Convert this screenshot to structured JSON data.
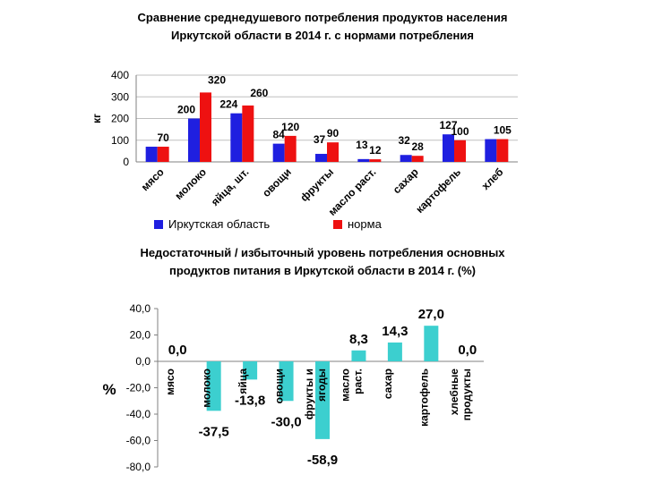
{
  "colors": {
    "irkutsk": "#1f1fe0",
    "norm": "#ee1111",
    "bars2": "#3ccfcf",
    "grid": "#bfbfbf",
    "axis": "#808080"
  },
  "chart_data": [
    {
      "type": "bar",
      "title_line1": "Сравнение среднедушевого потребления продуктов населения",
      "title_line2": "Иркутской области в 2014 г. с нормами потребления",
      "ylabel": "кг",
      "xlabel": "",
      "ylim": [
        0,
        400
      ],
      "yticks": [
        "0",
        "100",
        "200",
        "300",
        "400"
      ],
      "categories": [
        "мясо",
        "молоко",
        "яйца, шт.",
        "овощи",
        "фрукты",
        "масло раст.",
        "сахар",
        "картофель",
        "хлеб"
      ],
      "series": [
        {
          "name": "Иркутская область",
          "values": [
            70,
            200,
            224,
            84,
            37,
            13,
            32,
            127,
            105
          ],
          "labels": [
            "",
            "200",
            "224",
            "84",
            "37",
            "13",
            "32",
            "127",
            ""
          ]
        },
        {
          "name": "норма",
          "values": [
            70,
            320,
            260,
            120,
            90,
            12,
            28,
            100,
            105
          ],
          "labels": [
            "70",
            "320",
            "260",
            "120",
            "90",
            "12",
            "28",
            "100",
            "105"
          ]
        }
      ],
      "legend": "bottom",
      "grid": true
    },
    {
      "type": "bar",
      "title_line1": "Недостаточный / избыточный уровень потребления основных",
      "title_line2": "продуктов питания в Иркутской области в 2014 г. (%)",
      "ylabel": "%",
      "xlabel": "",
      "ylim": [
        -80,
        40
      ],
      "yticks": [
        "40,0",
        "20,0",
        "0,0",
        "-20,0",
        "-40,0",
        "-60,0",
        "-80,0"
      ],
      "categories": [
        "мясо",
        "молоко",
        "яйца",
        "овощи",
        "фрукты и ягоды",
        "масло раст.",
        "сахар",
        "картофель",
        "хлебные продукты"
      ],
      "values": [
        0.0,
        -37.5,
        -13.8,
        -30.0,
        -58.9,
        8.3,
        14.3,
        27.0,
        0.0
      ],
      "labels": [
        "0,0",
        "-37,5",
        "-13,8",
        "-30,0",
        "-58,9",
        "8,3",
        "14,3",
        "27,0",
        "0,0"
      ],
      "legend": "none",
      "grid": false
    }
  ]
}
